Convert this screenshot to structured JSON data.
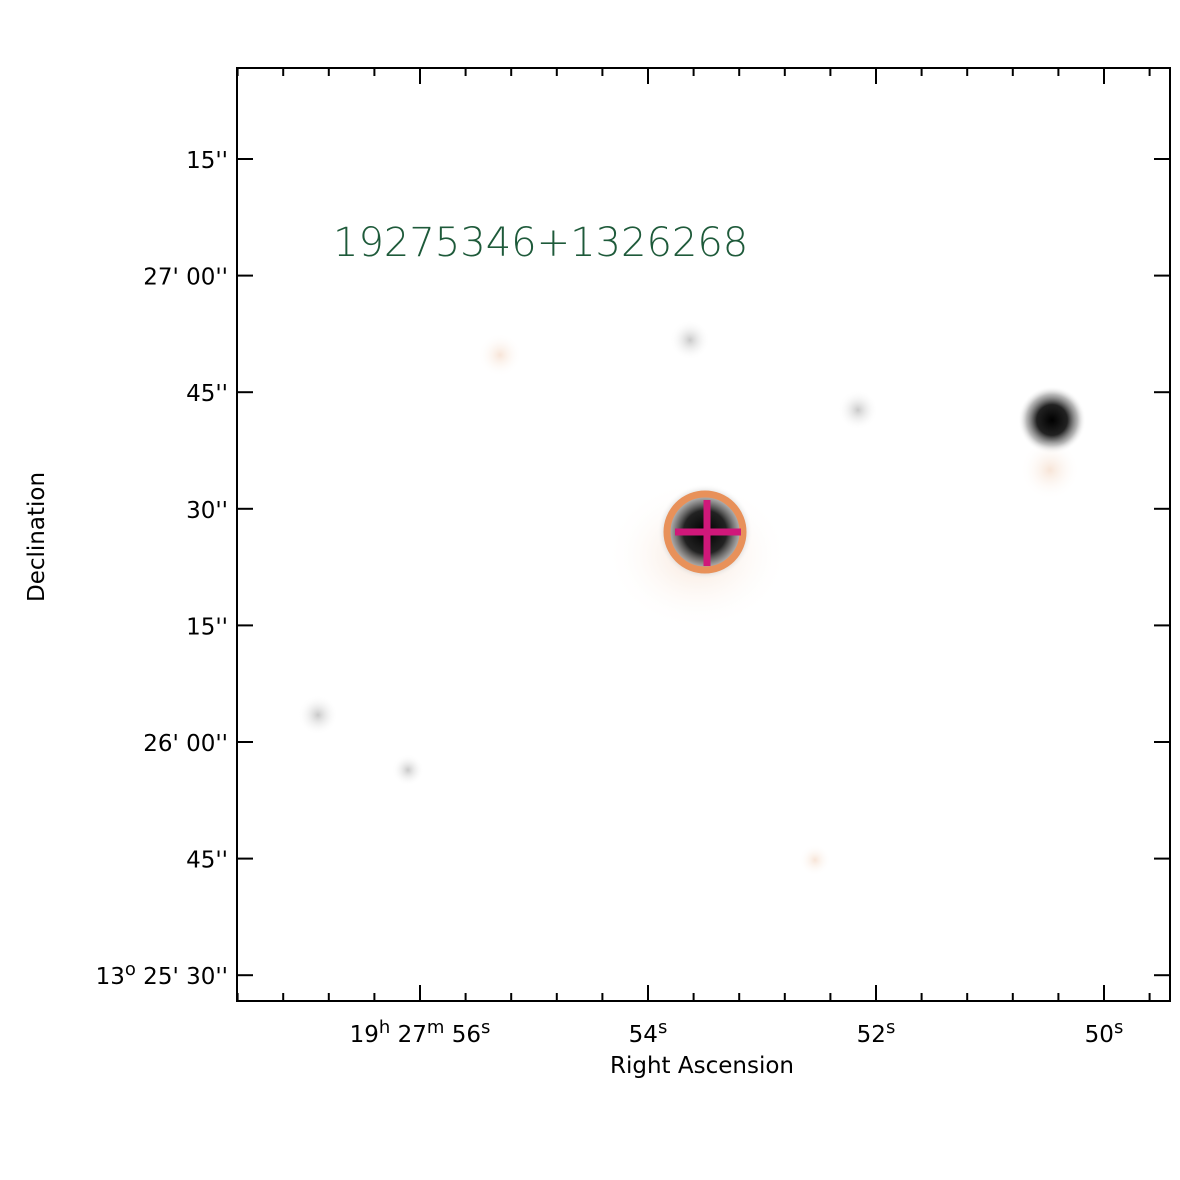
{
  "image": {
    "label": "19275346+1326268"
  },
  "axes": {
    "x_label": "Right Ascension",
    "y_label": "Declination",
    "x_ticks": [
      [
        "19",
        "h",
        " 27",
        "m",
        " 56",
        "s"
      ],
      [
        "54",
        "s"
      ],
      [
        "52",
        "s"
      ],
      [
        "50",
        "s"
      ]
    ],
    "y_ticks": [
      [
        "15''"
      ],
      [
        "27' 00''"
      ],
      [
        "45''"
      ],
      [
        "30''"
      ],
      [
        "15''"
      ],
      [
        "26' 00''"
      ],
      [
        "45''"
      ],
      [
        "13",
        "o",
        " 25' 30''"
      ]
    ]
  }
}
